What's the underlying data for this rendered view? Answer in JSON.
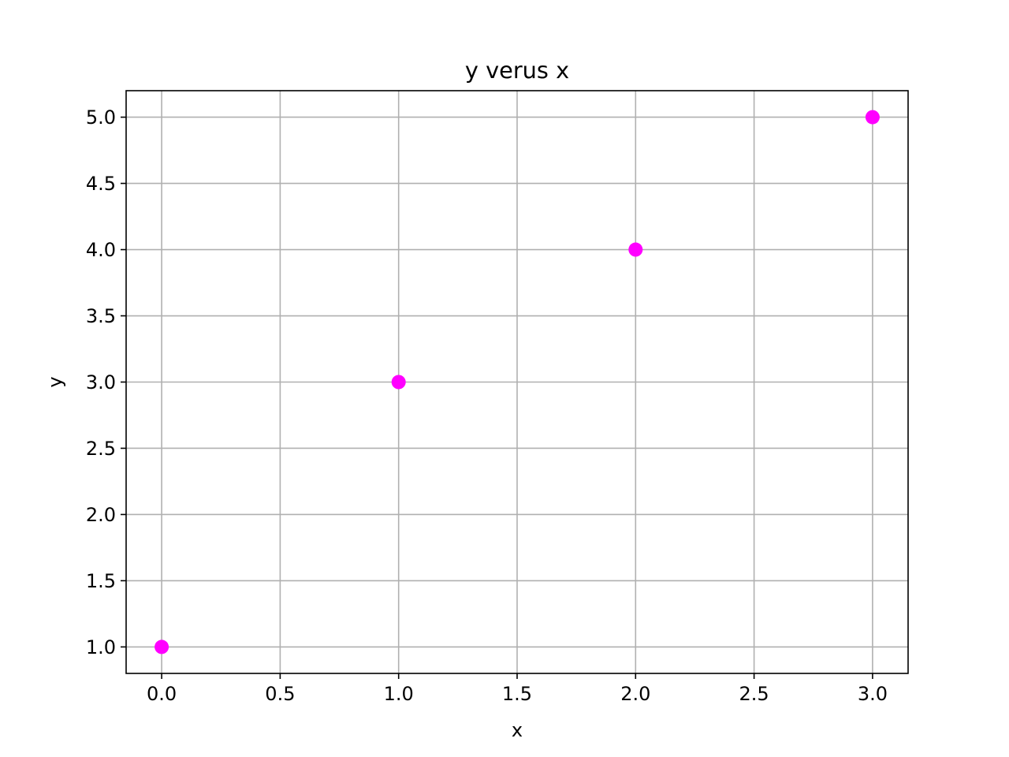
{
  "chart_data": {
    "type": "scatter",
    "title": "y verus x",
    "xlabel": "x",
    "ylabel": "y",
    "xlim": [
      -0.15,
      3.15
    ],
    "ylim": [
      0.8,
      5.2
    ],
    "grid": true,
    "x_ticks": [
      0.0,
      0.5,
      1.0,
      1.5,
      2.0,
      2.5,
      3.0
    ],
    "x_tick_labels": [
      "0.0",
      "0.5",
      "1.0",
      "1.5",
      "2.0",
      "2.5",
      "3.0"
    ],
    "y_ticks": [
      1.0,
      1.5,
      2.0,
      2.5,
      3.0,
      3.5,
      4.0,
      4.5,
      5.0
    ],
    "y_tick_labels": [
      "1.0",
      "1.5",
      "2.0",
      "2.5",
      "3.0",
      "3.5",
      "4.0",
      "4.5",
      "5.0"
    ],
    "series": [
      {
        "x": [
          0,
          1,
          2,
          3
        ],
        "y": [
          1,
          3,
          4,
          5
        ],
        "color": "#ff00ff",
        "marker": "circle"
      }
    ]
  }
}
